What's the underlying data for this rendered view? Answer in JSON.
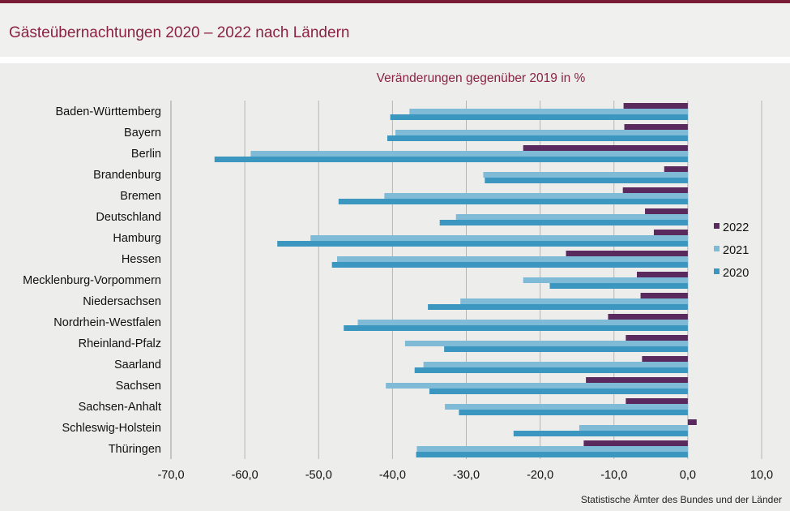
{
  "title": "Gästeübernachtungen 2020 – 2022 nach Ländern",
  "source": "Statistische Ämter des Bundes und der Länder",
  "colors": {
    "s2022": "#5a2a5e",
    "s2021": "#7fbad6",
    "s2020": "#3c97c0",
    "title": "#8c2340",
    "grid": "#b5b5b5"
  },
  "chart_data": {
    "type": "bar",
    "orientation": "horizontal",
    "title": "Veränderungen  gegenüber 2019 in %",
    "xlim": [
      -70,
      10
    ],
    "xticks": [
      "-70,0",
      "-60,0",
      "-50,0",
      "-40,0",
      "-30,0",
      "-20,0",
      "-10,0",
      "0,0",
      "10,0"
    ],
    "tick_values": [
      -70,
      -60,
      -50,
      -40,
      -30,
      -20,
      -10,
      0,
      10
    ],
    "grid": true,
    "legend_position": "right",
    "categories": [
      "Baden-Württemberg",
      "Bayern",
      "Berlin",
      "Brandenburg",
      "Bremen",
      "Deutschland",
      "Hamburg",
      "Hessen",
      "Mecklenburg-Vorpommern",
      "Niedersachsen",
      "Nordrhein-Westfalen",
      "Rheinland-Pfalz",
      "Saarland",
      "Sachsen",
      "Sachsen-Anhalt",
      "Schleswig-Holstein",
      "Thüringen"
    ],
    "series": [
      {
        "name": "2022",
        "values": [
          -8.7,
          -8.6,
          -22.3,
          -3.2,
          -8.8,
          -5.8,
          -4.6,
          -16.5,
          -6.9,
          -6.4,
          -10.8,
          -8.4,
          -6.2,
          -13.8,
          -8.4,
          1.2,
          -14.1
        ]
      },
      {
        "name": "2021",
        "values": [
          -37.7,
          -39.6,
          -59.2,
          -27.7,
          -41.1,
          -31.4,
          -51.1,
          -47.5,
          -22.3,
          -30.8,
          -44.7,
          -38.3,
          -35.8,
          -40.9,
          -32.9,
          -14.7,
          -36.7
        ]
      },
      {
        "name": "2020",
        "values": [
          -40.3,
          -40.7,
          -64.1,
          -27.5,
          -47.3,
          -33.6,
          -55.6,
          -48.2,
          -18.7,
          -35.2,
          -46.6,
          -33.0,
          -37.0,
          -35.0,
          -31.0,
          -23.6,
          -36.8
        ]
      }
    ]
  }
}
